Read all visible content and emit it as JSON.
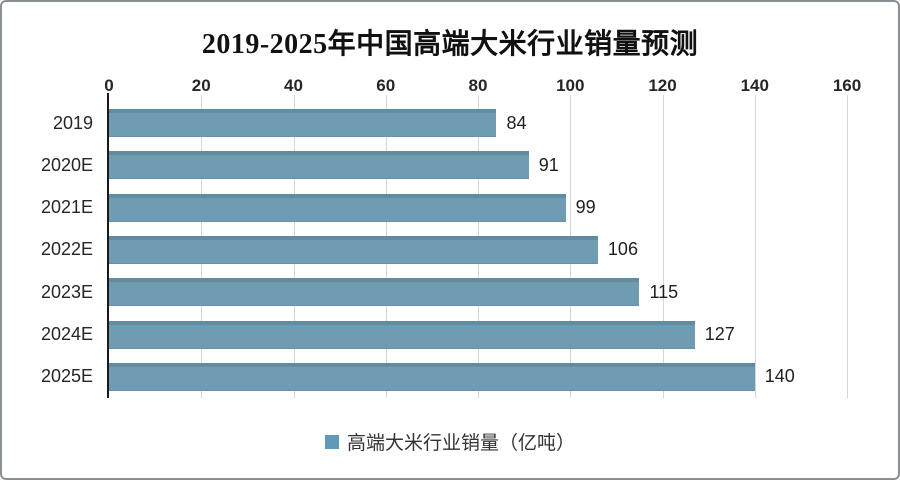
{
  "title": "2019-2025年中国高端大米行业销量预测",
  "legend": {
    "label": "高端大米行业销量（亿吨）",
    "position": "bottom"
  },
  "colors": {
    "bar": "#6f9cb2",
    "bar_top_edge": "#5e8ca3",
    "legend_swatch": "#5f9bb8",
    "gridline": "#d6d6d6",
    "axis_line": "#1a1a1a",
    "title_text": "#111111",
    "tick_text": "#262626",
    "frame_border": "#8a8f94",
    "background": "#ffffff"
  },
  "chart_data": {
    "type": "bar",
    "orientation": "horizontal",
    "title": "2019-2025年中国高端大米行业销量预测",
    "categories": [
      "2019",
      "2020E",
      "2021E",
      "2022E",
      "2023E",
      "2024E",
      "2025E"
    ],
    "values": [
      84,
      91,
      99,
      106,
      115,
      127,
      140
    ],
    "series": [
      {
        "name": "高端大米行业销量（亿吨）",
        "values": [
          84,
          91,
          99,
          106,
          115,
          127,
          140
        ]
      }
    ],
    "xlabel": "",
    "ylabel": "",
    "xlim": [
      0,
      160
    ],
    "xticks": [
      0,
      20,
      40,
      60,
      80,
      100,
      120,
      140,
      160
    ],
    "grid": "vertical",
    "value_labels_shown": true,
    "legend_position": "bottom",
    "axis_position": "top"
  }
}
